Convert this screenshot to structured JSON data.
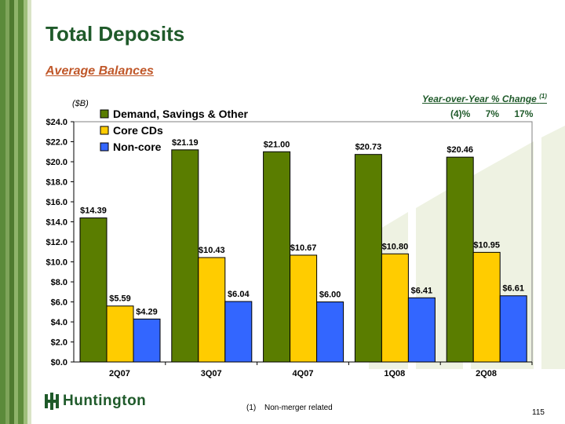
{
  "slide": {
    "title": "Total Deposits",
    "subtitle": "Average Balances",
    "unit": "($B)",
    "page_number": "115"
  },
  "yoy": {
    "heading": "Year-over-Year % Change",
    "marker": "(1)",
    "values": [
      "(4)%",
      "7%",
      "17%"
    ]
  },
  "footnote": {
    "marker": "(1)",
    "text": "Non-merger related"
  },
  "logo": {
    "text": "Huntington"
  },
  "colors": {
    "demand": "#5a7d00",
    "core_cds": "#ffcc00",
    "non_core": "#3366ff",
    "title": "#1f5a2a",
    "subtitle": "#c0582a"
  },
  "chart_data": {
    "type": "bar",
    "title": "Total Deposits",
    "ylabel": "($B)",
    "xlabel": "",
    "ylim": [
      0,
      24
    ],
    "ytick_step": 2,
    "ytick_labels": [
      "$0.0",
      "$2.0",
      "$4.0",
      "$6.0",
      "$8.0",
      "$10.0",
      "$12.0",
      "$14.0",
      "$16.0",
      "$18.0",
      "$20.0",
      "$22.0",
      "$24.0"
    ],
    "categories": [
      "2Q07",
      "3Q07",
      "4Q07",
      "1Q08",
      "2Q08"
    ],
    "legend_position": "top-left",
    "series": [
      {
        "name": "Demand, Savings & Other",
        "color": "#5a7d00",
        "values": [
          14.39,
          21.19,
          21.0,
          20.73,
          20.46
        ],
        "labels": [
          "$14.39",
          "$21.19",
          "$21.00",
          "$20.73",
          "$20.46"
        ]
      },
      {
        "name": "Core CDs",
        "color": "#ffcc00",
        "values": [
          5.59,
          10.43,
          10.67,
          10.8,
          10.95
        ],
        "labels": [
          "$5.59",
          "$10.43",
          "$10.67",
          "$10.80",
          "$10.95"
        ]
      },
      {
        "name": "Non-core",
        "color": "#3366ff",
        "values": [
          4.29,
          6.04,
          6.0,
          6.41,
          6.61
        ],
        "labels": [
          "$4.29",
          "$6.04",
          "$6.00",
          "$6.41",
          "$6.61"
        ]
      }
    ]
  }
}
